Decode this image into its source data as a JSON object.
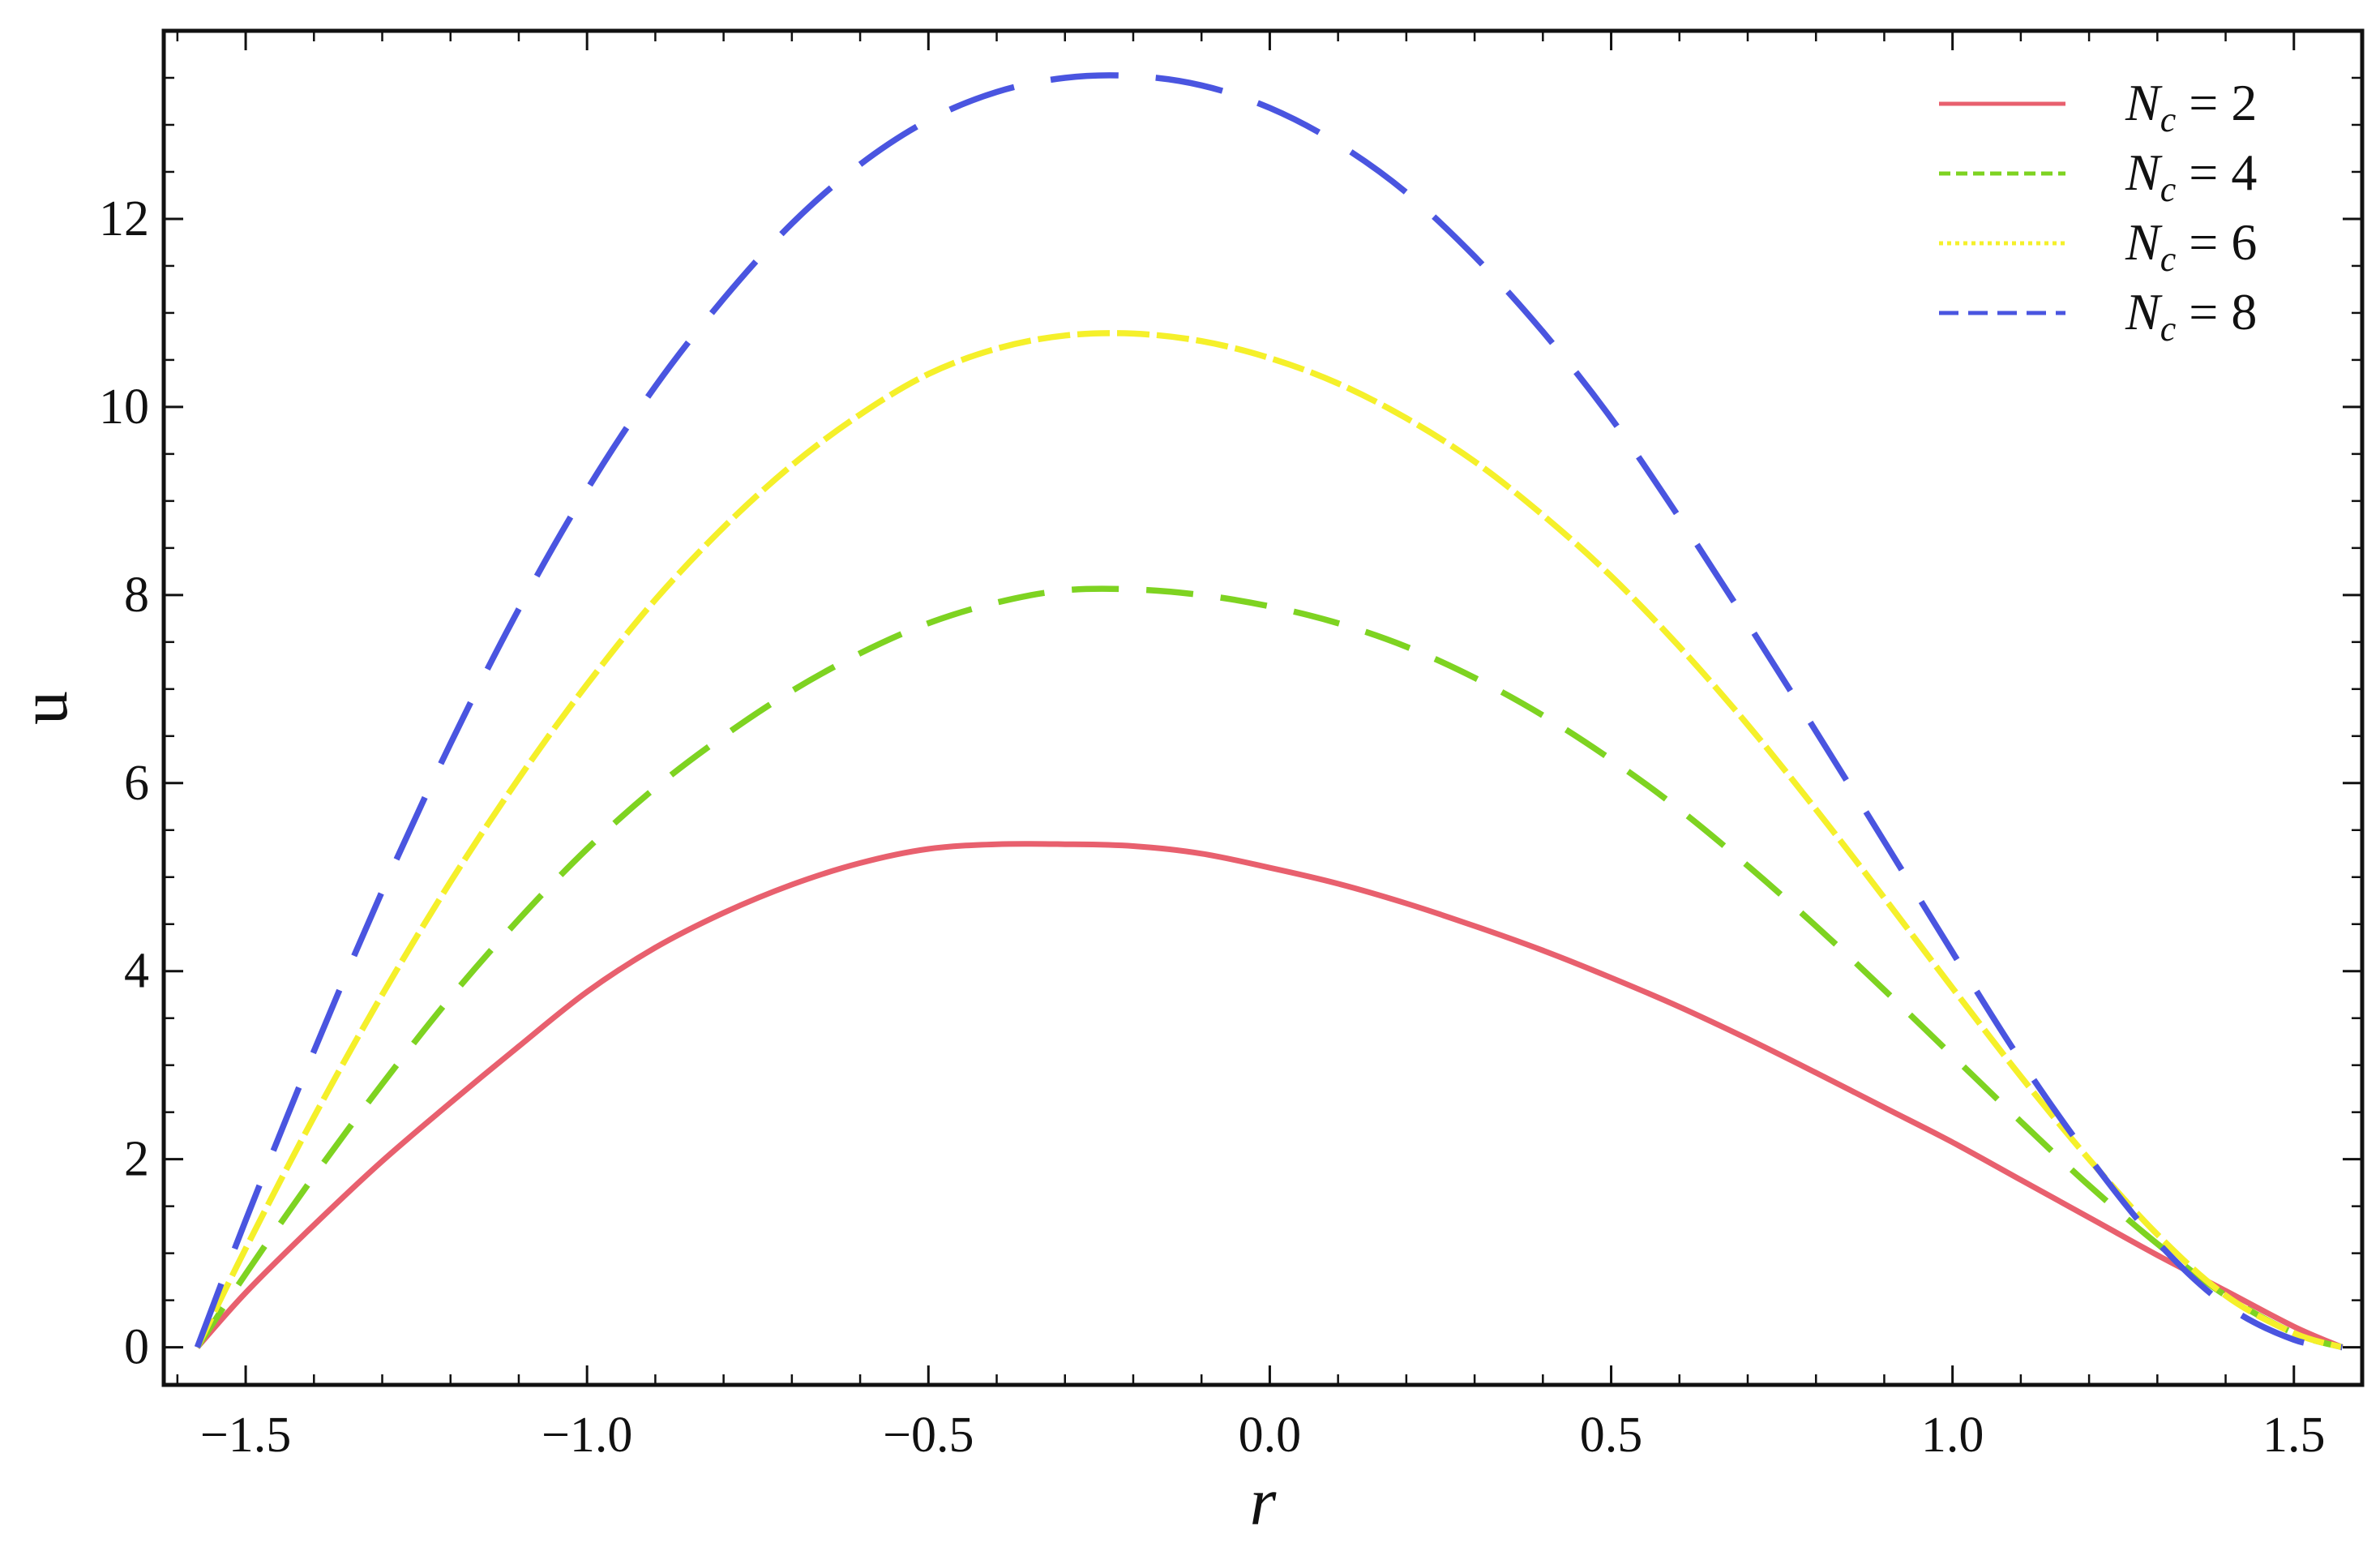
{
  "chart_data": {
    "type": "line",
    "title": "",
    "xlabel": "r",
    "ylabel": "u",
    "xlim": [
      -1.62,
      1.6
    ],
    "ylim": [
      -0.4,
      14.0
    ],
    "x_ticks": [
      -1.5,
      -1.0,
      -0.5,
      0.0,
      0.5,
      1.0,
      1.5
    ],
    "x_tick_labels": [
      "−1.5",
      "−1.0",
      "−0.5",
      "0.0",
      "0.5",
      "1.0",
      "1.5"
    ],
    "y_ticks": [
      0,
      2,
      4,
      6,
      8,
      10,
      12
    ],
    "y_tick_labels": [
      "0",
      "2",
      "4",
      "6",
      "8",
      "10",
      "12"
    ],
    "grid": false,
    "legend_position": "top-right",
    "x": [
      -1.5708,
      -1.5,
      -1.4,
      -1.3,
      -1.2,
      -1.1,
      -1.0,
      -0.9,
      -0.8,
      -0.7,
      -0.6,
      -0.5,
      -0.4,
      -0.3,
      -0.2,
      -0.1,
      0.0,
      0.1,
      0.2,
      0.3,
      0.4,
      0.5,
      0.6,
      0.7,
      0.8,
      0.9,
      1.0,
      1.1,
      1.2,
      1.3,
      1.4,
      1.5,
      1.5708
    ],
    "series": [
      {
        "name": "Nc = 2",
        "legend_symbol": "N",
        "legend_subscript": "c",
        "legend_value": " = 2",
        "color": "#e8606e",
        "style": "solid",
        "values": [
          0.0,
          0.58,
          1.3,
          1.98,
          2.6,
          3.2,
          3.78,
          4.25,
          4.62,
          4.92,
          5.15,
          5.3,
          5.35,
          5.35,
          5.33,
          5.25,
          5.1,
          4.93,
          4.72,
          4.48,
          4.22,
          3.93,
          3.62,
          3.28,
          2.92,
          2.55,
          2.18,
          1.78,
          1.38,
          0.98,
          0.6,
          0.22,
          0.0
        ]
      },
      {
        "name": "Nc = 4",
        "legend_symbol": "N",
        "legend_subscript": "c",
        "legend_value": " = 4",
        "color": "#7ed321",
        "style": "dashed",
        "values": [
          0.0,
          0.78,
          1.82,
          2.8,
          3.72,
          4.55,
          5.3,
          5.95,
          6.5,
          6.98,
          7.38,
          7.7,
          7.92,
          8.05,
          8.06,
          8.0,
          7.88,
          7.7,
          7.45,
          7.12,
          6.72,
          6.25,
          5.72,
          5.12,
          4.48,
          3.8,
          3.1,
          2.4,
          1.72,
          1.1,
          0.55,
          0.15,
          0.0
        ]
      },
      {
        "name": "Nc = 6",
        "legend_symbol": "N",
        "legend_subscript": "c",
        "legend_value": " = 6",
        "color": "#f5f02a",
        "style": "dotted",
        "values": [
          0.0,
          1.05,
          2.45,
          3.75,
          4.95,
          6.05,
          7.05,
          7.95,
          8.72,
          9.38,
          9.92,
          10.35,
          10.62,
          10.76,
          10.78,
          10.7,
          10.52,
          10.25,
          9.88,
          9.42,
          8.85,
          8.2,
          7.45,
          6.62,
          5.72,
          4.78,
          3.82,
          2.88,
          2.0,
          1.2,
          0.55,
          0.15,
          0.0
        ]
      },
      {
        "name": "Nc = 8",
        "legend_symbol": "N",
        "legend_subscript": "c",
        "legend_value": " = 8",
        "color": "#4a55e0",
        "style": "longdash",
        "values": [
          0.0,
          1.35,
          3.15,
          4.85,
          6.42,
          7.85,
          9.12,
          10.22,
          11.15,
          11.95,
          12.58,
          13.05,
          13.35,
          13.5,
          13.52,
          13.42,
          13.18,
          12.8,
          12.28,
          11.6,
          10.8,
          9.88,
          8.82,
          7.7,
          6.55,
          5.38,
          4.2,
          3.05,
          2.02,
          1.12,
          0.45,
          0.08,
          0.0
        ]
      }
    ]
  }
}
